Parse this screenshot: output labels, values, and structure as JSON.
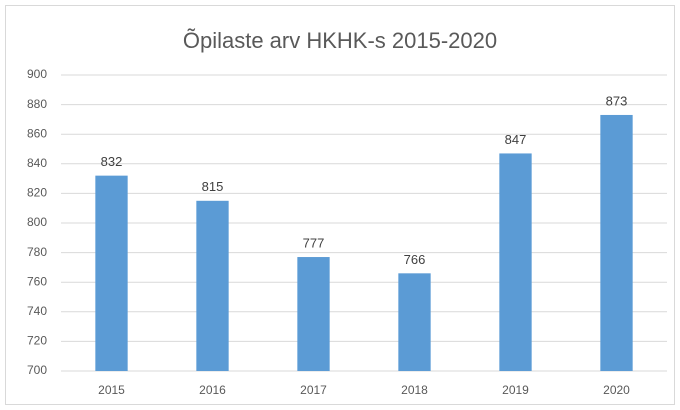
{
  "chart_data": {
    "type": "bar",
    "title": "Õpilaste arv HKHK-s 2015-2020",
    "categories": [
      "2015",
      "2016",
      "2017",
      "2018",
      "2019",
      "2020"
    ],
    "values": [
      832,
      815,
      777,
      766,
      847,
      873
    ],
    "color": "#5b9bd5",
    "ylim": [
      700,
      900
    ],
    "yticks": [
      700,
      720,
      740,
      760,
      780,
      800,
      820,
      840,
      860,
      880,
      900
    ],
    "grid": true
  }
}
